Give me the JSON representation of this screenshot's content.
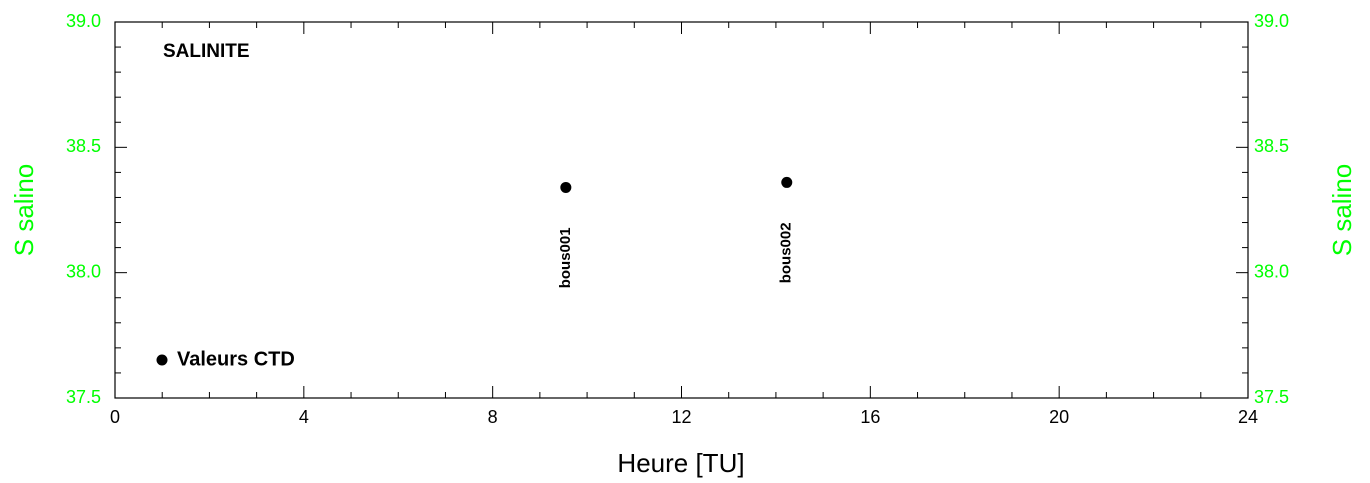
{
  "chart_data": {
    "type": "scatter",
    "title": "SALINITE",
    "xlabel": "Heure [TU]",
    "ylabel": "S salino",
    "y2label": "S salino",
    "series": [
      {
        "name": "Valeurs CTD",
        "color": "#000000",
        "x": [
          9.55,
          14.23
        ],
        "values": [
          38.34,
          38.36
        ],
        "point_labels": [
          "bous001",
          "bous002"
        ]
      }
    ],
    "xlim": [
      0,
      24
    ],
    "xticks": [
      0,
      4,
      8,
      12,
      16,
      20,
      24
    ],
    "ylim": [
      37.5,
      39.0
    ],
    "yticks": [
      37.5,
      {
        "value": 38,
        "label": "38.0"
      },
      38.5,
      {
        "value": 39,
        "label": "39.0"
      }
    ],
    "y2lim": [
      37.5,
      39.0
    ],
    "y2ticks": [
      37.5,
      {
        "value": 38,
        "label": "38.0"
      },
      38.5,
      {
        "value": 39,
        "label": "39.0"
      }
    ],
    "axis_color": "#00ff00",
    "legend": "lower left"
  }
}
